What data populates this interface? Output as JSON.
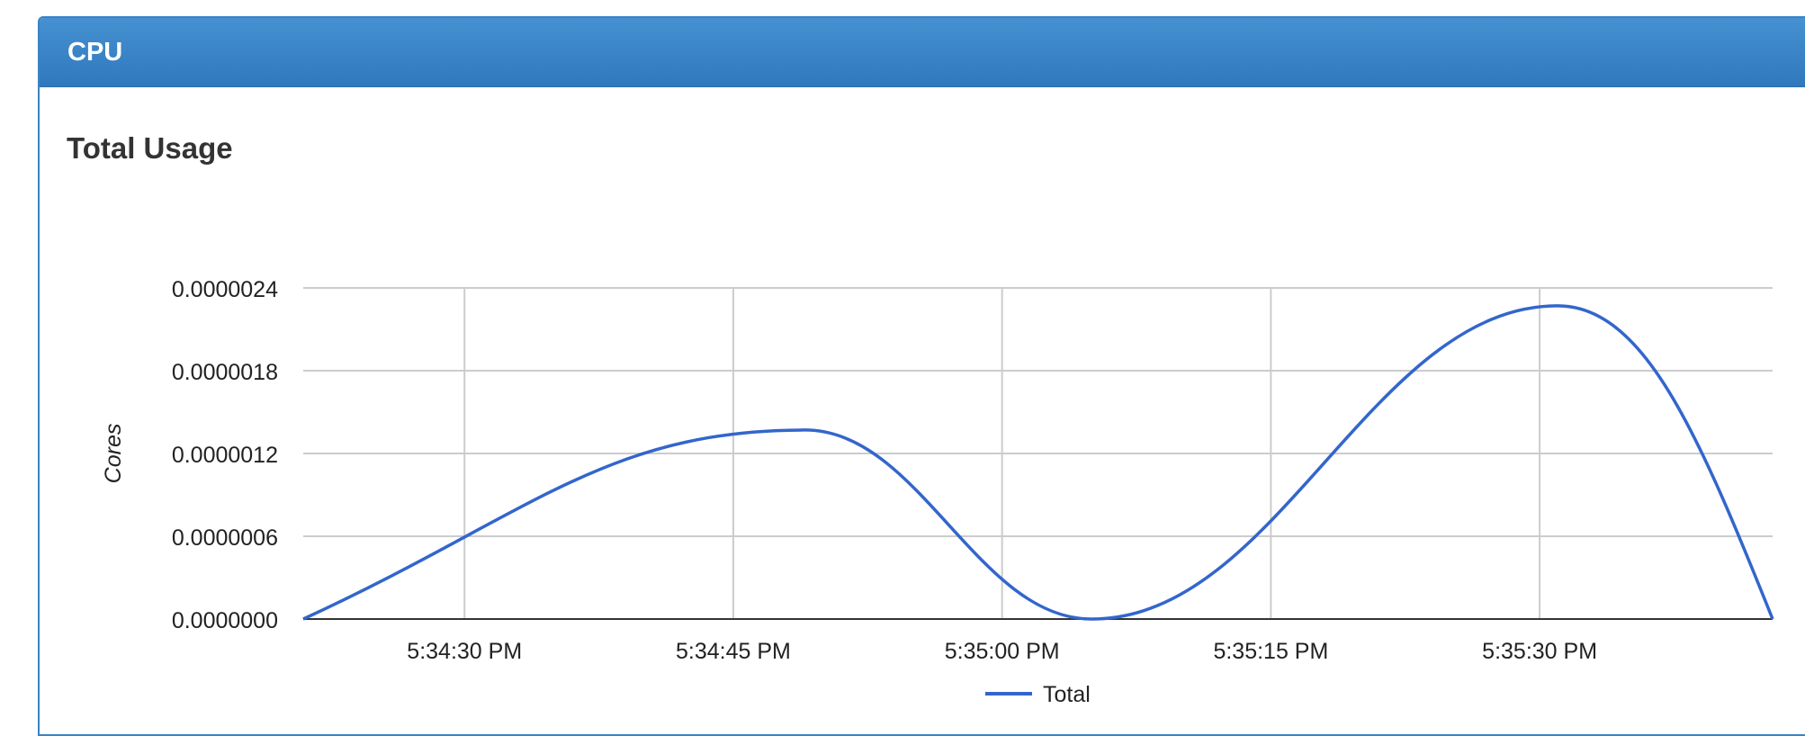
{
  "panel": {
    "title": "CPU"
  },
  "section": {
    "title": "Total Usage"
  },
  "chart_data": {
    "type": "line",
    "title": "Total Usage",
    "ylabel": "Cores",
    "xlabel": "",
    "x_ticks": [
      "5:34:30 PM",
      "5:34:45 PM",
      "5:35:00 PM",
      "5:35:15 PM",
      "5:35:30 PM"
    ],
    "y_ticks": [
      "0.0000000",
      "0.0000006",
      "0.0000012",
      "0.0000018",
      "0.0000024"
    ],
    "ylim": [
      0,
      2.4e-06
    ],
    "xlim": [
      "5:34:21 PM",
      "5:35:43 PM"
    ],
    "grid": true,
    "legend_position": "bottom",
    "series": [
      {
        "name": "Total",
        "color": "#3366cc",
        "x": [
          "5:34:21 PM",
          "5:34:49 PM",
          "5:35:05 PM",
          "5:35:31 PM",
          "5:35:43 PM"
        ],
        "y": [
          0.0,
          1.37e-06,
          0.0,
          2.27e-06,
          0.0
        ]
      }
    ]
  }
}
